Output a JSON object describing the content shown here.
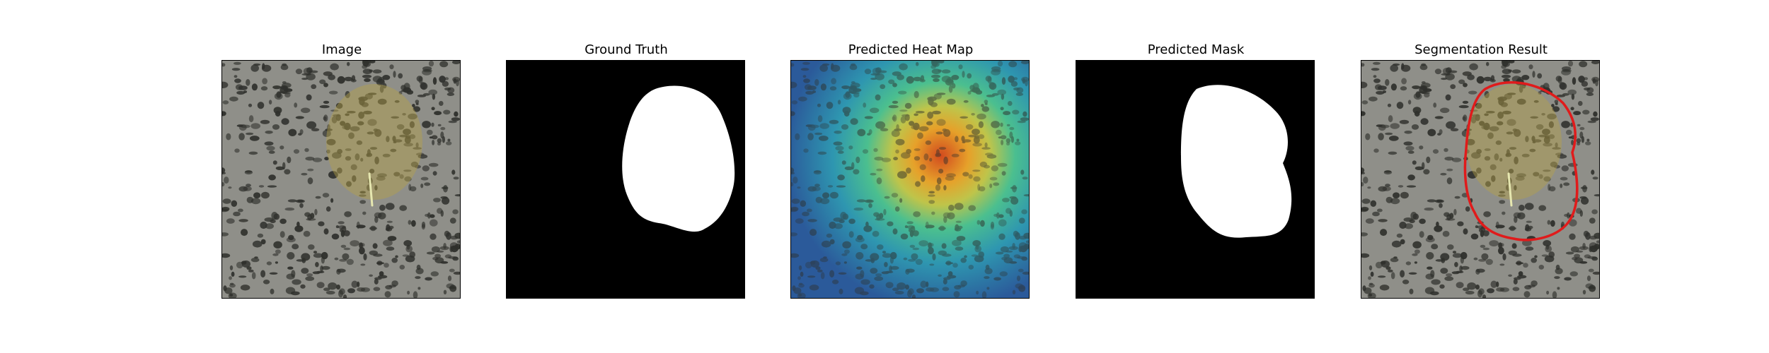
{
  "figure": {
    "panels": [
      {
        "title": "Image"
      },
      {
        "title": "Ground Truth"
      },
      {
        "title": "Predicted Heat Map"
      },
      {
        "title": "Predicted Mask"
      },
      {
        "title": "Segmentation Result"
      }
    ]
  },
  "colors": {
    "background": "#ffffff",
    "mask_fill": "#ffffff",
    "mask_background": "#000000",
    "contour": "#e01b1b",
    "texture_base": "#8f8f89",
    "texture_spots": "#2f302c",
    "leaf_tint": "#b6a24a"
  }
}
